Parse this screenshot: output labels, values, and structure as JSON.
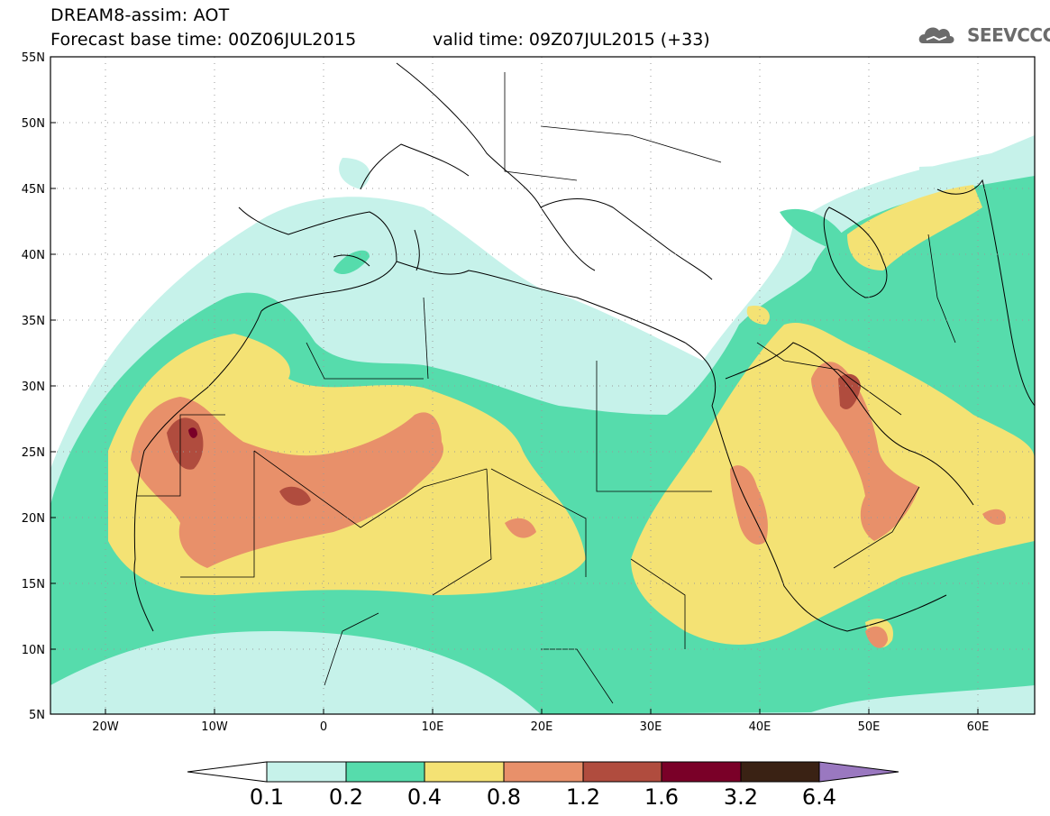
{
  "header": {
    "title_line1": "DREAM8-assim: AOT",
    "title_line2": "Forecast base time: 00Z06JUL2015",
    "valid_time": "valid time: 09Z07JUL2015 (+33)",
    "logo_text": "SEEVCCC"
  },
  "axes": {
    "lat_labels": [
      "55N",
      "50N",
      "45N",
      "40N",
      "35N",
      "30N",
      "25N",
      "20N",
      "15N",
      "10N",
      "5N"
    ],
    "lon_labels": [
      "20W",
      "10W",
      "0",
      "10E",
      "20E",
      "30E",
      "40E",
      "50E",
      "60E"
    ]
  },
  "legend": {
    "labels": [
      "0.1",
      "0.2",
      "0.4",
      "0.8",
      "1.2",
      "1.6",
      "3.2",
      "6.4"
    ],
    "colors": [
      "#c6f2ea",
      "#56dcac",
      "#f4e274",
      "#e8906a",
      "#b04c3e",
      "#7a0028",
      "#3a2214",
      "#9a78c0"
    ]
  },
  "palette": {
    "c1": "#c6f2ea",
    "c2": "#56dcac",
    "c3": "#f4e274",
    "c4": "#e8906a",
    "c5": "#b04c3e",
    "c6": "#7a0028"
  }
}
